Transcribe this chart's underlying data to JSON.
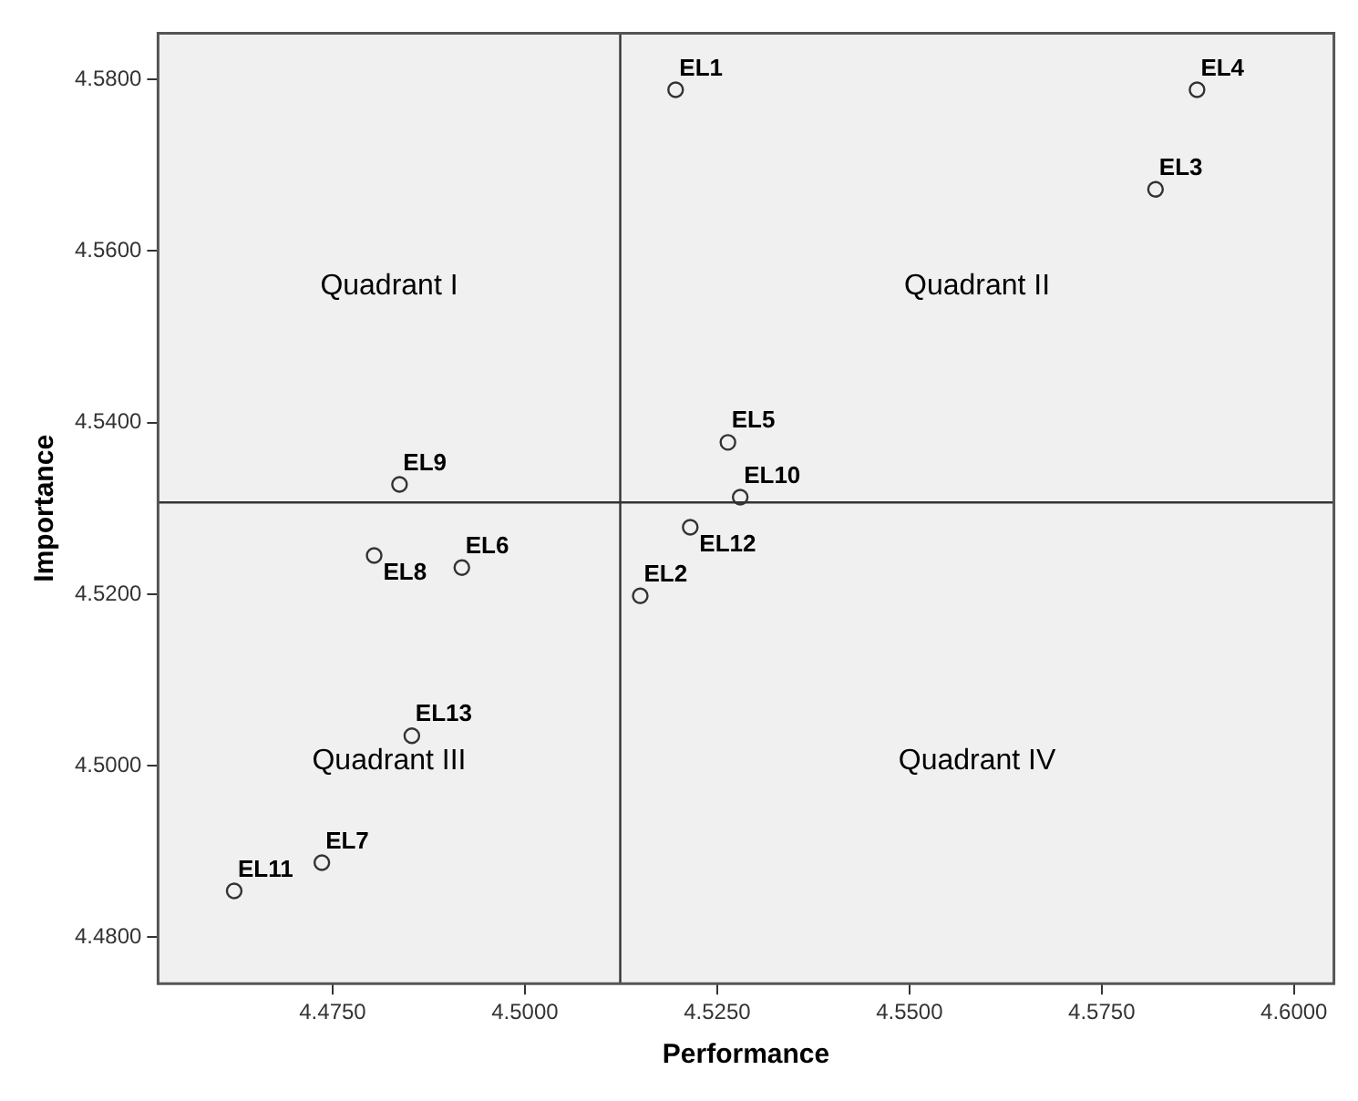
{
  "chart_data": {
    "type": "scatter",
    "xlabel": "Performance",
    "ylabel": "Importance",
    "x": [
      4.5196,
      4.515,
      4.582,
      4.5874,
      4.5264,
      4.4918,
      4.4736,
      4.4804,
      4.4837,
      4.528,
      4.4622,
      4.5215,
      4.4853
    ],
    "series": [
      {
        "color": "#333333",
        "values": [
          4.5788,
          4.5198,
          4.5672,
          4.5788,
          4.5377,
          4.5231,
          4.4887,
          4.5245,
          4.5328,
          4.5313,
          4.4854,
          4.5278,
          4.5035
        ]
      }
    ],
    "marker": "circle",
    "grid": false,
    "legend": false,
    "xlim": [
      4.4523,
      4.6052
    ],
    "ylim": [
      4.4746,
      4.5854
    ],
    "xticks": [
      {
        "value": 4.475,
        "label": "4.4750"
      },
      {
        "value": 4.5,
        "label": "4.5000"
      },
      {
        "value": 4.525,
        "label": "4.5250"
      },
      {
        "value": 4.55,
        "label": "4.5500"
      },
      {
        "value": 4.575,
        "label": "4.5750"
      },
      {
        "value": 4.6,
        "label": "4.6000"
      }
    ],
    "yticks": [
      {
        "value": 4.48,
        "label": "4.4800"
      },
      {
        "value": 4.5,
        "label": "4.5000"
      },
      {
        "value": 4.52,
        "label": "4.5200"
      },
      {
        "value": 4.54,
        "label": "4.5400"
      },
      {
        "value": 4.56,
        "label": "4.5600"
      },
      {
        "value": 4.58,
        "label": "4.5800"
      }
    ],
    "ref_lines": [
      {
        "axis": "x",
        "value": 4.5124
      },
      {
        "axis": "y",
        "value": 4.5307
      }
    ],
    "annotations": [
      "Quadrant I",
      "Quadrant II",
      "Quadrant III",
      "Quadrant IV",
      {
        "text": "EL1",
        "x": 4.5196,
        "y": 4.5788
      },
      {
        "text": "EL2",
        "x": 4.515,
        "y": 4.5198
      },
      {
        "text": "EL3",
        "x": 4.582,
        "y": 4.5672
      },
      {
        "text": "EL4",
        "x": 4.5874,
        "y": 4.5788
      },
      {
        "text": "EL5",
        "x": 4.5264,
        "y": 4.5377
      },
      {
        "text": "EL6",
        "x": 4.4918,
        "y": 4.5231
      },
      {
        "text": "EL7",
        "x": 4.4736,
        "y": 4.4887
      },
      {
        "text": "EL8",
        "x": 4.4804,
        "y": 4.5245
      },
      {
        "text": "EL9",
        "x": 4.4837,
        "y": 4.5328
      },
      {
        "text": "EL10",
        "x": 4.528,
        "y": 4.5313
      },
      {
        "text": "EL11",
        "x": 4.4622,
        "y": 4.4854
      },
      {
        "text": "EL12",
        "x": 4.5215,
        "y": 4.5278
      },
      {
        "text": "EL13",
        "x": 4.4853,
        "y": 4.5035
      }
    ]
  }
}
